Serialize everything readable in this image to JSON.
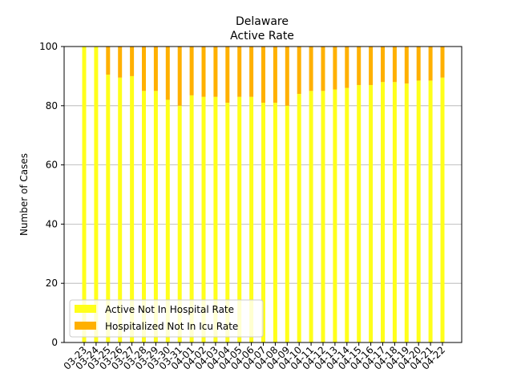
{
  "chart_data": {
    "type": "bar",
    "stacked": true,
    "title": "Delaware",
    "subtitle": "Active Rate",
    "xlabel": "",
    "ylabel": "Number of Cases",
    "ylim": [
      0,
      100
    ],
    "yticks": [
      0,
      20,
      40,
      60,
      80,
      100
    ],
    "grid": "y",
    "legend_position": "bottom-left",
    "categories": [
      "03-23",
      "03-24",
      "03-25",
      "03-26",
      "03-27",
      "03-28",
      "03-29",
      "03-30",
      "03-31",
      "04-01",
      "04-02",
      "04-03",
      "04-04",
      "04-05",
      "04-06",
      "04-07",
      "04-08",
      "04-09",
      "04-10",
      "04-11",
      "04-12",
      "04-13",
      "04-14",
      "04-15",
      "04-16",
      "04-17",
      "04-18",
      "04-19",
      "04-20",
      "04-21",
      "04-22"
    ],
    "series": [
      {
        "name": "Active Not In Hospital Rate",
        "color": "#ffff1a",
        "values": [
          100,
          100,
          90.5,
          89.5,
          90,
          85,
          85,
          82,
          80,
          83.5,
          83,
          83,
          81,
          83,
          83,
          81,
          81,
          80,
          84,
          85,
          85,
          85.5,
          86,
          87,
          87,
          88,
          88,
          87.5,
          88.5,
          88.5,
          89.5
        ]
      },
      {
        "name": "Hospitalized Not In Icu Rate",
        "color": "#ffb000",
        "values": [
          0,
          0,
          9.5,
          10.5,
          10,
          15,
          15,
          18,
          20,
          16.5,
          17,
          17,
          19,
          17,
          17,
          19,
          19,
          20,
          16,
          15,
          15,
          14.5,
          14,
          13,
          13,
          12,
          12,
          12.5,
          11.5,
          11.5,
          10.5
        ]
      }
    ]
  }
}
